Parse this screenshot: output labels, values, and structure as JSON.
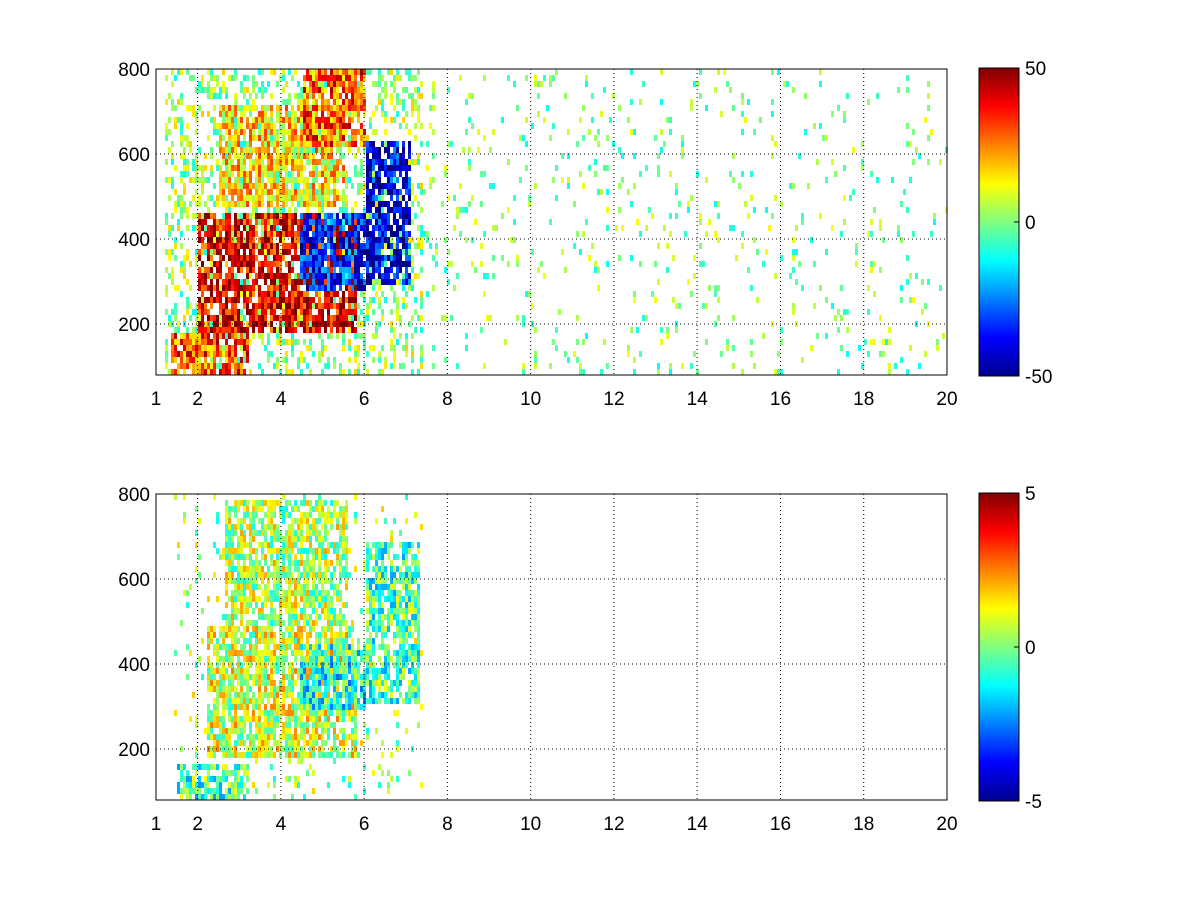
{
  "chart_data": [
    {
      "type": "heatmap",
      "title": "",
      "xlabel": "",
      "ylabel": "",
      "xlim": [
        1,
        20
      ],
      "ylim": [
        80,
        800
      ],
      "x_ticks": [
        1,
        2,
        4,
        6,
        8,
        10,
        12,
        14,
        16,
        18,
        20
      ],
      "x_tick_labels": [
        "1",
        "2",
        "4",
        "6",
        "8",
        "10",
        "12",
        "14",
        "16",
        "18",
        "20"
      ],
      "y_ticks": [
        200,
        400,
        600,
        800
      ],
      "y_tick_labels": [
        "200",
        "400",
        "600",
        "800"
      ],
      "grid": true,
      "colormap": "jet",
      "clim": [
        -50,
        50
      ],
      "colorbar_ticks": [
        -50,
        0,
        50
      ],
      "colorbar_tick_labels": [
        "-50",
        "0",
        "50"
      ],
      "description_values": {
        "dense_region_x": [
          1.2,
          7.4
        ],
        "sparse_region_x": [
          7.4,
          20
        ],
        "bands": [
          {
            "x": [
              1.3,
              3.2
            ],
            "y": [
              90,
              190
            ],
            "value": 30
          },
          {
            "x": [
              2.0,
              5.8
            ],
            "y": [
              180,
              470
            ],
            "value": 40
          },
          {
            "x": [
              4.4,
              6.0
            ],
            "y": [
              290,
              470
            ],
            "value": -35
          },
          {
            "x": [
              6.0,
              7.1
            ],
            "y": [
              300,
              640
            ],
            "value": -40
          },
          {
            "x": [
              2.5,
              5.5
            ],
            "y": [
              480,
              720
            ],
            "value": 15
          },
          {
            "x": [
              4.5,
              6.0
            ],
            "y": [
              620,
              800
            ],
            "value": 30
          }
        ]
      }
    },
    {
      "type": "heatmap",
      "title": "",
      "xlabel": "",
      "ylabel": "",
      "xlim": [
        1,
        20
      ],
      "ylim": [
        80,
        800
      ],
      "x_ticks": [
        1,
        2,
        4,
        6,
        8,
        10,
        12,
        14,
        16,
        18,
        20
      ],
      "x_tick_labels": [
        "1",
        "2",
        "4",
        "6",
        "8",
        "10",
        "12",
        "14",
        "16",
        "18",
        "20"
      ],
      "y_ticks": [
        200,
        400,
        600,
        800
      ],
      "y_tick_labels": [
        "200",
        "400",
        "600",
        "800"
      ],
      "grid": true,
      "colormap": "jet",
      "clim": [
        -5,
        5
      ],
      "colorbar_ticks": [
        -5,
        0,
        5
      ],
      "colorbar_tick_labels": [
        "-5",
        "0",
        "5"
      ],
      "description_values": {
        "dense_region_x": [
          1.4,
          7.4
        ],
        "bands": [
          {
            "x": [
              1.5,
              3.2
            ],
            "y": [
              90,
              170
            ],
            "value": -0.5
          },
          {
            "x": [
              2.2,
              5.8
            ],
            "y": [
              190,
              500
            ],
            "value": 0.8
          },
          {
            "x": [
              4.4,
              6.0
            ],
            "y": [
              300,
              460
            ],
            "value": -1.0
          },
          {
            "x": [
              6.0,
              7.3
            ],
            "y": [
              320,
              700
            ],
            "value": -0.5
          },
          {
            "x": [
              2.6,
              5.6
            ],
            "y": [
              500,
              790
            ],
            "value": 0.5
          }
        ]
      }
    }
  ]
}
